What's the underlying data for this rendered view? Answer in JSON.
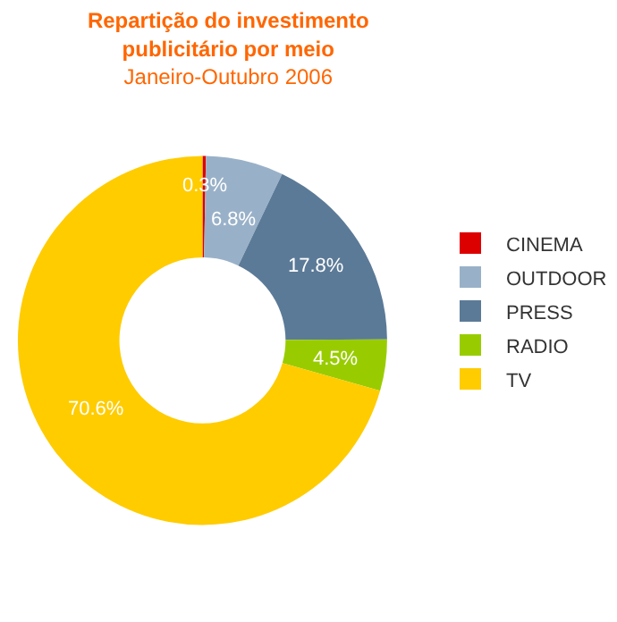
{
  "chart_data": {
    "type": "donut",
    "title": "Repartição do investimento publicitário por meio",
    "subtitle": "Janeiro-Outubro 2006",
    "categories": [
      "CINEMA",
      "OUTDOOR",
      "PRESS",
      "RADIO",
      "TV"
    ],
    "values": [
      0.3,
      6.8,
      17.8,
      4.5,
      70.6
    ],
    "colors": [
      "#dd0000",
      "#99b1c8",
      "#5b7a97",
      "#99cc00",
      "#ffcc00"
    ],
    "value_labels": [
      "0.3%",
      "6.8%",
      "17.8%",
      "4.5%",
      "70.6%"
    ],
    "legend": "right"
  }
}
